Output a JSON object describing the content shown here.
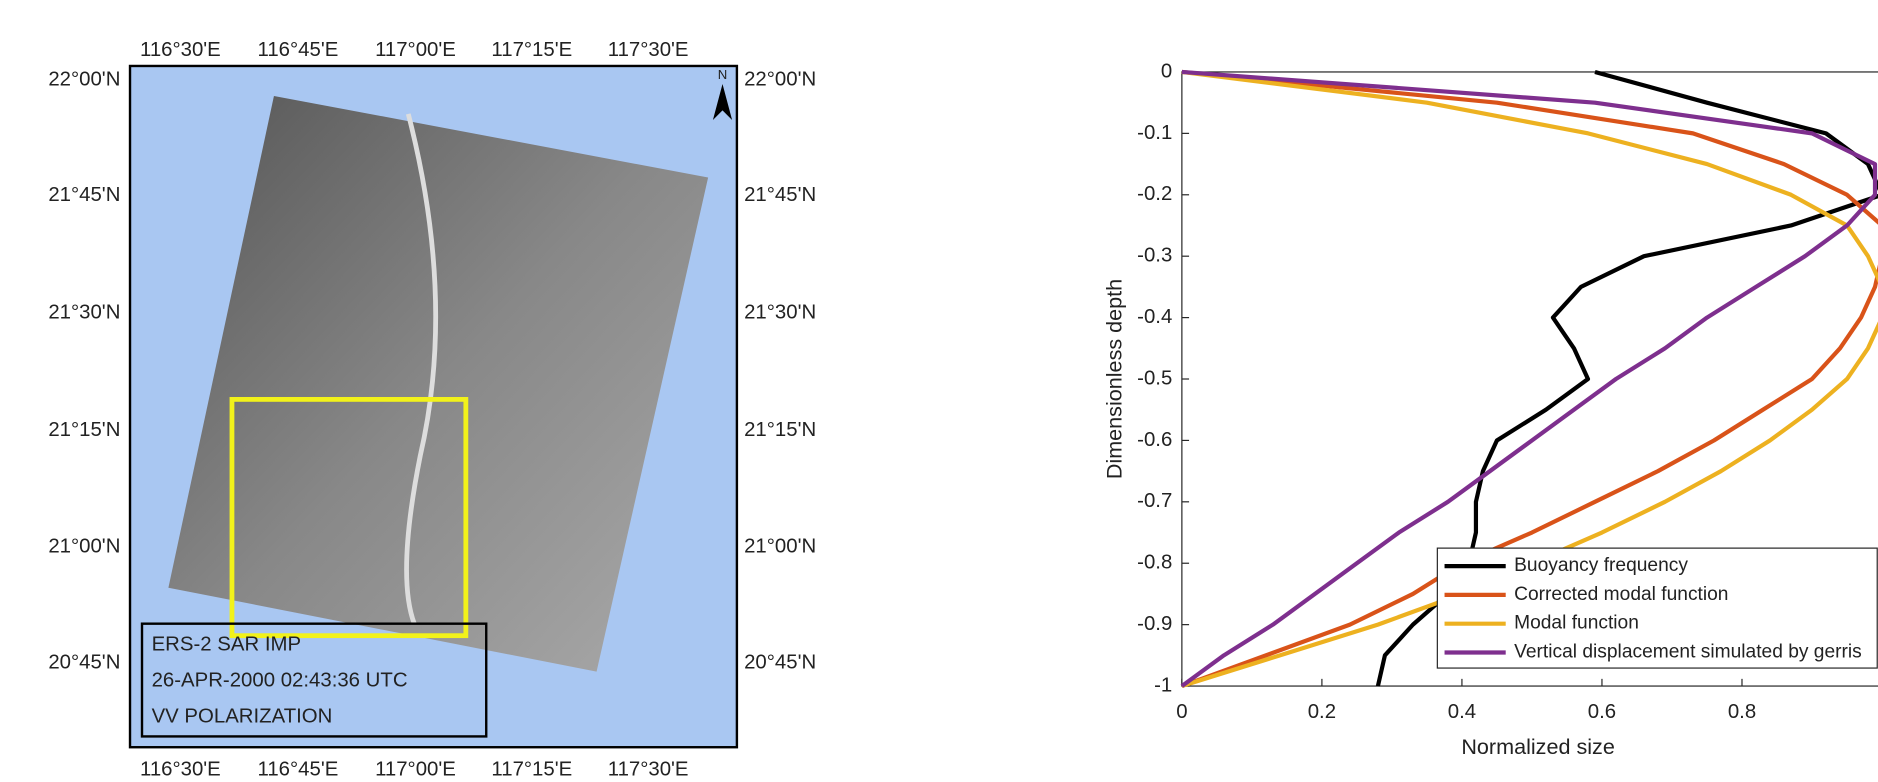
{
  "map": {
    "lon_labels": [
      "116°30'E",
      "116°45'E",
      "117°00'E",
      "117°15'E",
      "117°30'E"
    ],
    "lat_labels": [
      "22°00'N",
      "21°45'N",
      "21°30'N",
      "21°15'N",
      "21°00'N",
      "20°45'N"
    ],
    "north": "N",
    "info": [
      "ERS-2 SAR IMP",
      "26-APR-2000 02:43:36 UTC",
      "VV POLARIZATION"
    ]
  },
  "chart_data": {
    "type": "line",
    "xlabel": "Normalized size",
    "ylabel": "Dimensionless depth",
    "y": [
      0,
      -0.05,
      -0.1,
      -0.15,
      -0.2,
      -0.25,
      -0.3,
      -0.35,
      -0.4,
      -0.45,
      -0.5,
      -0.55,
      -0.6,
      -0.65,
      -0.7,
      -0.75,
      -0.8,
      -0.85,
      -0.9,
      -0.95,
      -1
    ],
    "series": [
      {
        "name": "Buoyancy frequency",
        "color": "#000000",
        "values": [
          0.59,
          0.75,
          0.92,
          0.98,
          1.0,
          0.87,
          0.66,
          0.57,
          0.53,
          0.56,
          0.58,
          0.52,
          0.45,
          0.43,
          0.42,
          0.42,
          0.41,
          0.38,
          0.33,
          0.29,
          0.28
        ]
      },
      {
        "name": "Corrected modal function",
        "color": "#d95319",
        "values": [
          0,
          0.45,
          0.73,
          0.86,
          0.95,
          1.0,
          1.0,
          0.99,
          0.97,
          0.94,
          0.9,
          0.83,
          0.76,
          0.68,
          0.59,
          0.5,
          0.4,
          0.33,
          0.24,
          0.12,
          0
        ]
      },
      {
        "name": "Modal function",
        "color": "#edb120",
        "values": [
          0,
          0.35,
          0.58,
          0.75,
          0.87,
          0.95,
          0.98,
          1.0,
          1.0,
          0.98,
          0.95,
          0.9,
          0.84,
          0.77,
          0.69,
          0.6,
          0.5,
          0.4,
          0.28,
          0.14,
          0
        ]
      },
      {
        "name": "Vertical displacement simulated by gerris",
        "color": "#7e2f8e",
        "values": [
          0,
          0.59,
          0.9,
          0.99,
          0.99,
          0.95,
          0.89,
          0.82,
          0.75,
          0.69,
          0.62,
          0.56,
          0.5,
          0.44,
          0.38,
          0.31,
          0.25,
          0.19,
          0.13,
          0.06,
          0
        ]
      }
    ],
    "xlim": [
      0,
      1
    ],
    "ylim": [
      -1,
      0
    ],
    "xticks": [
      0,
      0.2,
      0.4,
      0.6,
      0.8
    ],
    "yticks": [
      0,
      -0.1,
      -0.2,
      -0.3,
      -0.4,
      -0.5,
      -0.6,
      -0.7,
      -0.8,
      -0.9,
      -1
    ],
    "legend": "lower-right"
  }
}
